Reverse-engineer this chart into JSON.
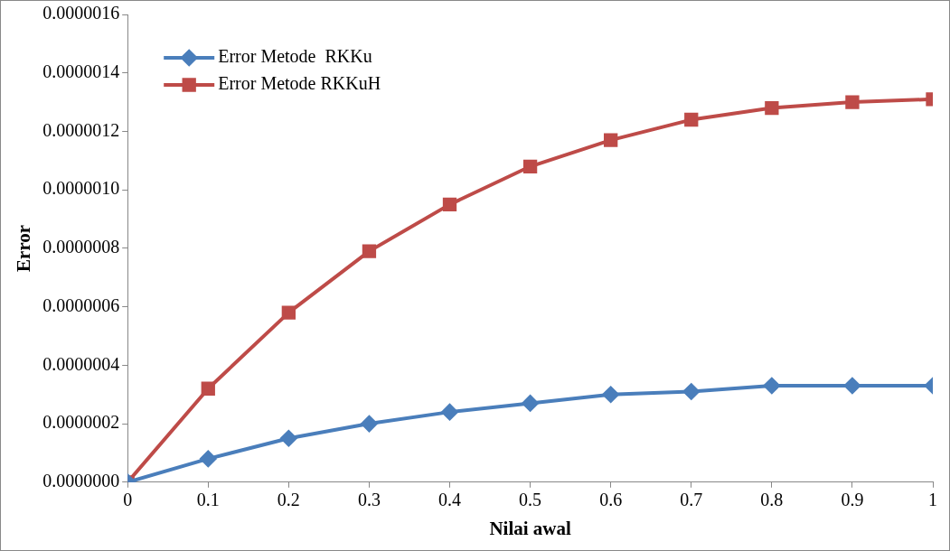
{
  "chart_data": {
    "type": "line",
    "xlabel": "Nilai awal",
    "ylabel": "Error",
    "x": [
      0,
      0.1,
      0.2,
      0.3,
      0.4,
      0.5,
      0.6,
      0.7,
      0.8,
      0.9,
      1
    ],
    "series": [
      {
        "name": "Error Metode  RKKu",
        "color": "#4a7ebb",
        "marker": "diamond",
        "values": [
          0,
          8e-08,
          1.5e-07,
          2e-07,
          2.4e-07,
          2.7e-07,
          3e-07,
          3.1e-07,
          3.3e-07,
          3.3e-07,
          3.3e-07
        ]
      },
      {
        "name": "Error Metode RKKuH",
        "color": "#be4b48",
        "marker": "square",
        "values": [
          0,
          3.2e-07,
          5.8e-07,
          7.9e-07,
          9.5e-07,
          1.08e-06,
          1.17e-06,
          1.24e-06,
          1.28e-06,
          1.3e-06,
          1.31e-06
        ]
      }
    ],
    "xlim": [
      0,
      1
    ],
    "xticks": [
      0,
      0.1,
      0.2,
      0.3,
      0.4,
      0.5,
      0.6,
      0.7,
      0.8,
      0.9,
      1
    ],
    "ylim": [
      0,
      1.6e-06
    ],
    "yticks": [
      {
        "value": 0,
        "label": "0.0000000"
      },
      {
        "value": 2e-07,
        "label": "0.0000002"
      },
      {
        "value": 4e-07,
        "label": "0.0000004"
      },
      {
        "value": 6e-07,
        "label": "0.0000006"
      },
      {
        "value": 8e-07,
        "label": "0.0000008"
      },
      {
        "value": 1e-06,
        "label": "0.0000010"
      },
      {
        "value": 1.2e-06,
        "label": "0.0000012"
      },
      {
        "value": 1.4e-06,
        "label": "0.0000014"
      },
      {
        "value": 1.6e-06,
        "label": "0.0000016"
      }
    ],
    "grid": false,
    "legend": "top left",
    "line_style": "solid"
  }
}
